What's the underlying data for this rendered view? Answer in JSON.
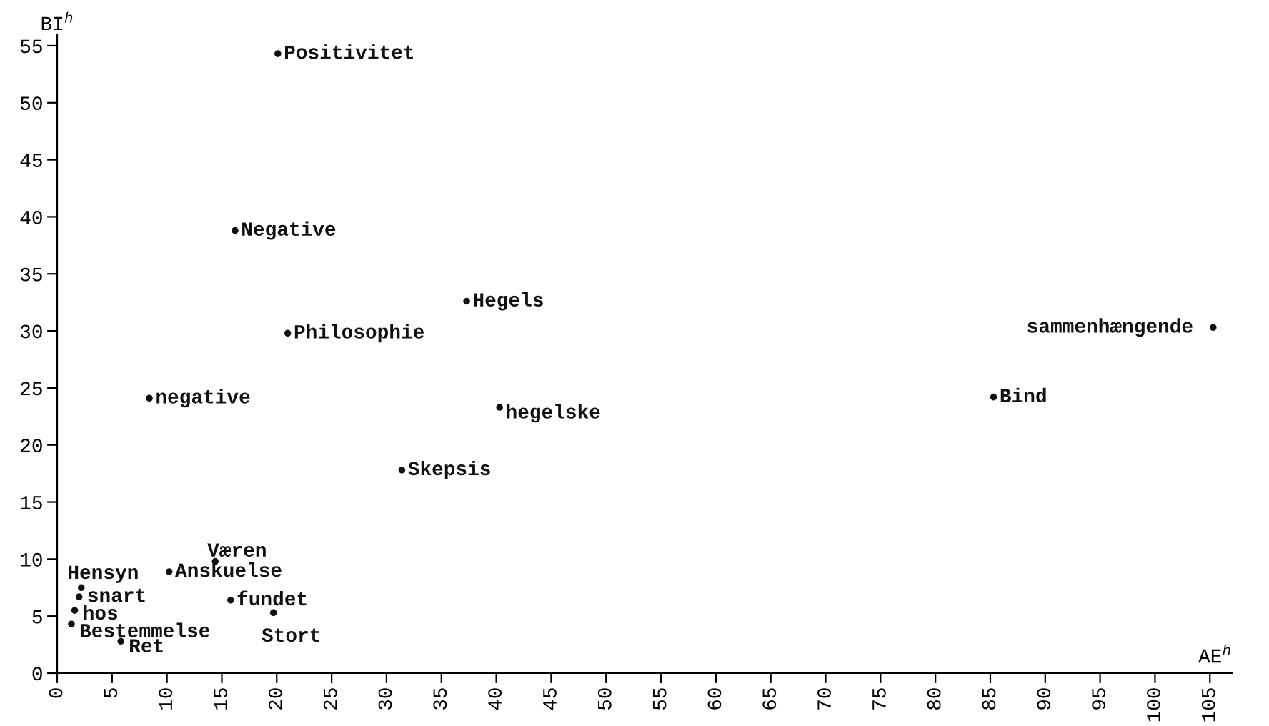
{
  "chart_data": {
    "type": "scatter",
    "xlabel": "AE$^{h}$",
    "ylabel": "BI$^{h}$",
    "x": [
      20.1,
      16.2,
      37.3,
      21.0,
      8.4,
      40.3,
      31.4,
      105.3,
      85.3,
      14.4,
      10.2,
      15.8,
      19.7,
      2.2,
      2.0,
      1.6,
      1.3,
      5.8
    ],
    "series": [
      {
        "color": "#111111",
        "values": [
          54.3,
          38.8,
          32.6,
          29.8,
          24.1,
          23.3,
          17.8,
          30.3,
          24.2,
          9.8,
          8.9,
          6.4,
          5.3,
          7.5,
          6.7,
          5.5,
          4.3,
          2.8
        ]
      }
    ],
    "annotations": [
      {
        "text": "Positivitet",
        "x": 20.1,
        "y": 54.3
      },
      {
        "text": "Negative",
        "x": 16.2,
        "y": 38.8
      },
      {
        "text": "Hegels",
        "x": 37.3,
        "y": 32.6
      },
      {
        "text": "Philosophie",
        "x": 21.0,
        "y": 29.8
      },
      {
        "text": "negative",
        "x": 8.4,
        "y": 24.1
      },
      {
        "text": "hegelske",
        "x": 40.3,
        "y": 23.3
      },
      {
        "text": "Skepsis",
        "x": 31.4,
        "y": 17.8
      },
      {
        "text": "sammenhængende",
        "x": 105.3,
        "y": 30.3
      },
      {
        "text": "Bind",
        "x": 85.3,
        "y": 24.2
      },
      {
        "text": "Væren",
        "x": 14.4,
        "y": 9.8
      },
      {
        "text": "Anskuelse",
        "x": 10.2,
        "y": 8.9
      },
      {
        "text": "fundet",
        "x": 15.8,
        "y": 6.4
      },
      {
        "text": "Stort",
        "x": 19.7,
        "y": 5.3
      },
      {
        "text": "Hensyn",
        "x": 2.2,
        "y": 7.5
      },
      {
        "text": "snart",
        "x": 2.0,
        "y": 6.7
      },
      {
        "text": "hos",
        "x": 1.6,
        "y": 5.5
      },
      {
        "text": "Bestemmelse",
        "x": 1.3,
        "y": 4.3
      },
      {
        "text": "Ret",
        "x": 5.8,
        "y": 2.8
      }
    ],
    "xlim": [
      0,
      107
    ],
    "ylim": [
      0,
      56
    ],
    "xticks": [
      0,
      5,
      10,
      15,
      20,
      25,
      30,
      35,
      40,
      45,
      50,
      55,
      60,
      65,
      70,
      75,
      80,
      85,
      90,
      95,
      100,
      105
    ],
    "yticks": [
      0,
      5,
      10,
      15,
      20,
      25,
      30,
      35,
      40,
      45,
      50,
      55
    ],
    "marker": "circle",
    "grid": false,
    "legend": false
  }
}
